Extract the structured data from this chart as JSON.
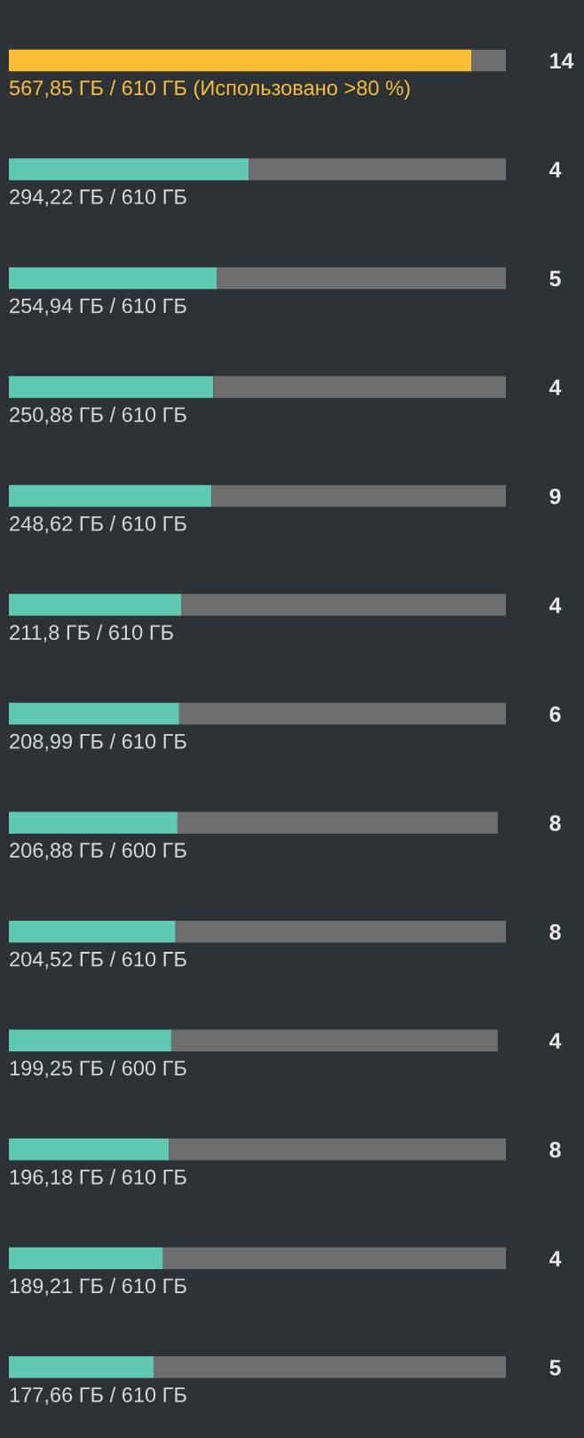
{
  "chart_data": {
    "type": "bar",
    "orientation": "horizontal",
    "stacked": true,
    "categories": [
      "14",
      "4",
      "5",
      "4",
      "9",
      "4",
      "6",
      "8",
      "8",
      "4",
      "8",
      "4",
      "5"
    ],
    "tick_labels": "y",
    "grid": false,
    "legend": false,
    "series": [
      {
        "colors": [
          "#f9bd36",
          "#5fc9b2",
          "#5fc9b2",
          "#5fc9b2",
          "#5fc9b2",
          "#5fc9b2",
          "#5fc9b2",
          "#5fc9b2",
          "#5fc9b2",
          "#5fc9b2",
          "#5fc9b2",
          "#5fc9b2",
          "#5fc9b2"
        ],
        "values": [
          567.85,
          294.22,
          254.94,
          250.88,
          248.62,
          211.8,
          208.99,
          206.88,
          204.52,
          199.25,
          196.18,
          189.21,
          177.66
        ],
        "value_labels": [
          "567,85 ГБ / 610 ГБ (Использовано >80 %)",
          "294,22 ГБ / 610 ГБ",
          "254,94 ГБ / 610 ГБ",
          "250,88 ГБ / 610 ГБ",
          "248,62 ГБ / 610 ГБ",
          "211,8 ГБ / 610 ГБ",
          "208,99 ГБ / 610 ГБ",
          "206,88 ГБ / 600 ГБ",
          "204,52 ГБ / 610 ГБ",
          "199,25 ГБ / 600 ГБ",
          "196,18 ГБ / 610 ГБ",
          "189,21 ГБ / 610 ГБ",
          "177,66 ГБ / 610 ГБ"
        ]
      },
      {
        "color": "#6e6e6e",
        "values": [
          42.15,
          315.78,
          355.06,
          359.12,
          361.38,
          398.2,
          401.01,
          393.12,
          405.48,
          400.75,
          413.82,
          420.79,
          432.34
        ]
      }
    ]
  }
}
